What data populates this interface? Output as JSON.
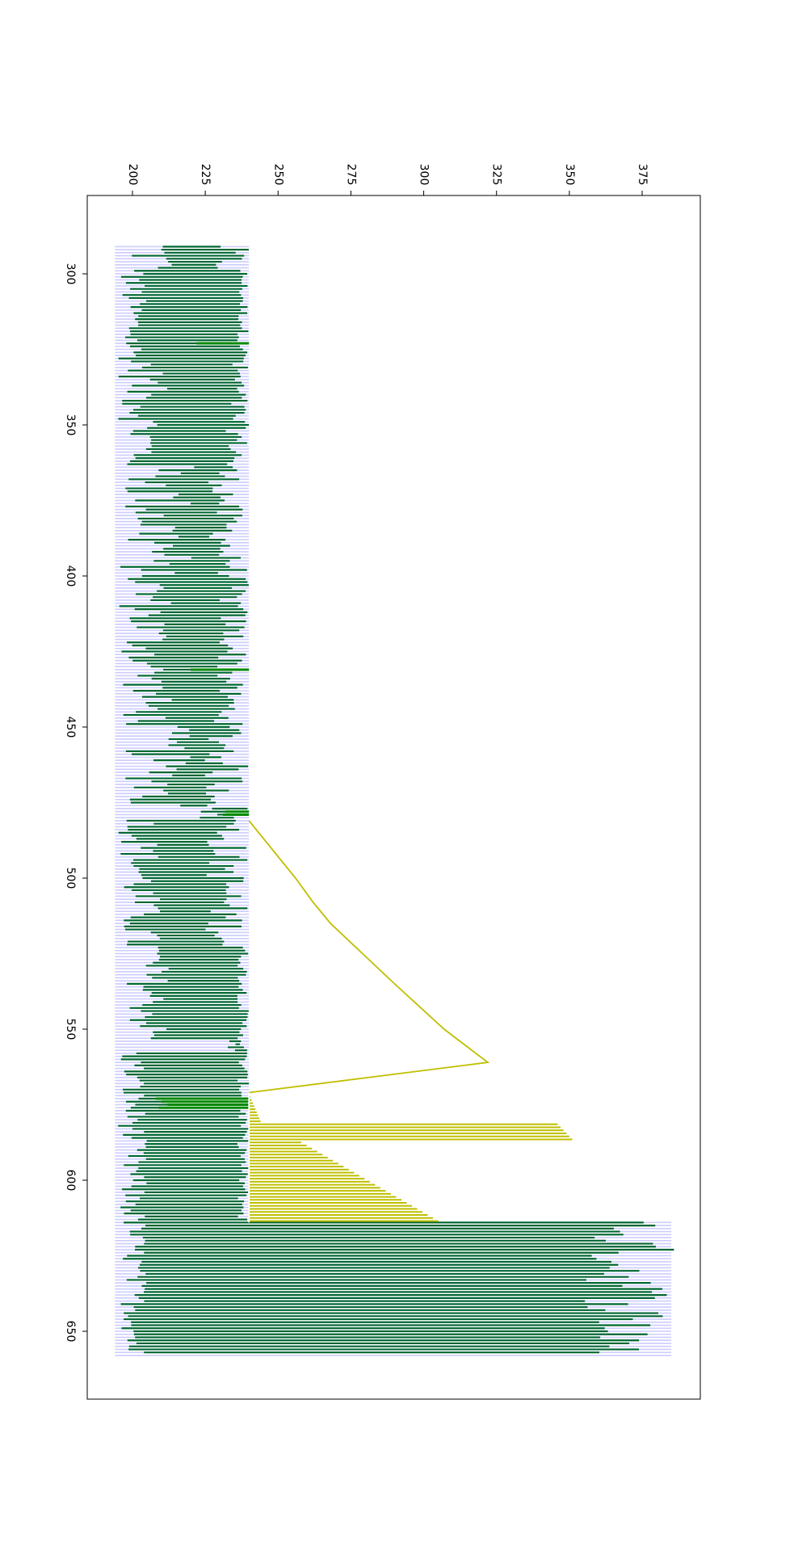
{
  "chart_data": {
    "type": "line",
    "orientation": "rotated-90-clockwise",
    "title": "",
    "xlabel": "",
    "ylabel": "",
    "x_range": [
      280,
      680
    ],
    "y_range": [
      185,
      394
    ],
    "x_ticks": [
      "300",
      "350",
      "400",
      "450",
      "500",
      "550",
      "600",
      "650"
    ],
    "y_ticks": [
      "200",
      "225",
      "250",
      "275",
      "300",
      "325",
      "350",
      "375"
    ],
    "grid": false,
    "legend": "none",
    "colors": {
      "background_band": "#ccccff",
      "range_lines": "#006633",
      "highlight_lines": "#008800",
      "yellow_series": "#bfbf00",
      "white_line": "#ffffff",
      "frame": "#000000"
    },
    "band": {
      "x_start": 291,
      "x_end": 658,
      "y_low": 194,
      "y_high": 240,
      "y_high_late": 385,
      "late_start": 614
    },
    "range_series": {
      "x_start": 291,
      "x_end": 658,
      "step": 1,
      "segments": [
        {
          "x": [
            291,
            300
          ],
          "low": [
            196,
            218
          ],
          "high": [
            226,
            240
          ]
        },
        {
          "x": [
            300,
            330
          ],
          "low": [
            195,
            205
          ],
          "high": [
            236,
            240
          ]
        },
        {
          "x": [
            330,
            363
          ],
          "low": [
            195,
            212
          ],
          "high": [
            232,
            240
          ]
        },
        {
          "x": [
            363,
            395
          ],
          "low": [
            195,
            222
          ],
          "high": [
            226,
            238
          ]
        },
        {
          "x": [
            395,
            430
          ],
          "low": [
            195,
            215
          ],
          "high": [
            229,
            240
          ]
        },
        {
          "x": [
            430,
            450
          ],
          "low": [
            196,
            214
          ],
          "high": [
            228,
            238
          ]
        },
        {
          "x": [
            450,
            477
          ],
          "low": [
            197,
            220
          ],
          "high": [
            224,
            240
          ]
        },
        {
          "x": [
            477,
            481
          ],
          "low": [
            223,
            232
          ],
          "high": [
            234,
            240
          ]
        },
        {
          "x": [
            481,
            523
          ],
          "low": [
            195,
            210
          ],
          "high": [
            225,
            240
          ]
        },
        {
          "x": [
            523,
            554
          ],
          "low": [
            198,
            213
          ],
          "high": [
            236,
            240
          ]
        },
        {
          "x": [
            554,
            558
          ],
          "low": [
            232,
            236
          ],
          "high": [
            236,
            240
          ]
        },
        {
          "x": [
            558,
            614
          ],
          "low": [
            195,
            205
          ],
          "high": [
            236,
            240
          ]
        },
        {
          "x": [
            614,
            658
          ],
          "low": [
            196,
            205
          ],
          "high": [
            355,
            387
          ]
        }
      ]
    },
    "highlight_points": [
      {
        "x": 478,
        "low": 232,
        "high": 240
      },
      {
        "x": 479,
        "low": 231,
        "high": 240
      },
      {
        "x": 573,
        "low": 208,
        "high": 240
      },
      {
        "x": 574,
        "low": 210,
        "high": 240
      },
      {
        "x": 575,
        "low": 212,
        "high": 240
      },
      {
        "x": 576,
        "low": 209,
        "high": 240
      },
      {
        "x": 323,
        "low": 222,
        "high": 240
      },
      {
        "x": 431,
        "low": 220,
        "high": 240
      }
    ],
    "series": [
      {
        "color": "#bfbf00",
        "x": [
          481,
          500,
          508,
          515,
          535,
          550,
          561,
          571
        ],
        "y": [
          240,
          256,
          262,
          268,
          290,
          307,
          322,
          240
        ]
      },
      {
        "color": "#ffffff",
        "x": [
          571,
          571
        ],
        "y": [
          240,
          240
        ]
      }
    ],
    "yellow_bars": {
      "segments": [
        {
          "x": [
            571,
            581
          ],
          "low": 240,
          "high": [
            240,
            244
          ]
        },
        {
          "x": [
            581,
            587
          ],
          "low": 240,
          "high": [
            346,
            351
          ]
        },
        {
          "x": [
            587,
            614
          ],
          "low": 240,
          "high": [
            258,
            305
          ]
        }
      ]
    }
  }
}
